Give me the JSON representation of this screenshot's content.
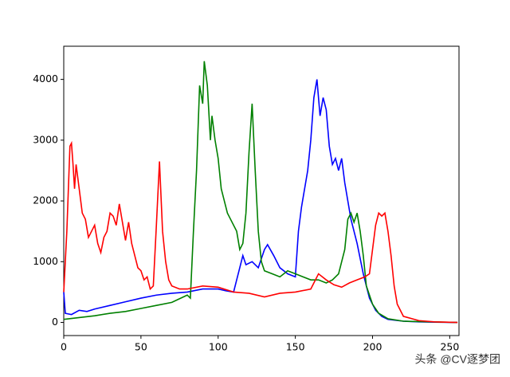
{
  "chart_data": {
    "type": "line",
    "xlim": [
      0,
      256
    ],
    "ylim": [
      -216,
      4546
    ],
    "xticks": [
      0,
      50,
      100,
      150,
      200,
      250
    ],
    "yticks": [
      0,
      1000,
      2000,
      3000,
      4000
    ],
    "series": [
      {
        "color": "#0000ff",
        "x": [
          0,
          1,
          5,
          10,
          15,
          20,
          30,
          40,
          50,
          60,
          70,
          80,
          90,
          100,
          105,
          110,
          112,
          116,
          118,
          122,
          126,
          130,
          132,
          136,
          140,
          145,
          150,
          152,
          154,
          158,
          160,
          162,
          164,
          166,
          168,
          170,
          172,
          174,
          176,
          178,
          180,
          182,
          184,
          186,
          190,
          194,
          198,
          202,
          206,
          210,
          220,
          230,
          240,
          255
        ],
        "values": [
          500,
          150,
          130,
          200,
          180,
          220,
          280,
          340,
          400,
          450,
          480,
          500,
          550,
          550,
          520,
          500,
          700,
          1100,
          950,
          1000,
          900,
          1200,
          1280,
          1100,
          900,
          800,
          750,
          1500,
          1900,
          2500,
          3000,
          3700,
          4000,
          3400,
          3700,
          3500,
          2900,
          2600,
          2700,
          2500,
          2700,
          2300,
          2000,
          1700,
          1300,
          800,
          400,
          200,
          100,
          50,
          20,
          10,
          5,
          0
        ]
      },
      {
        "color": "#008000",
        "x": [
          0,
          10,
          20,
          30,
          40,
          50,
          60,
          70,
          80,
          82,
          84,
          86,
          88,
          90,
          91,
          93,
          95,
          96,
          98,
          100,
          102,
          104,
          106,
          108,
          112,
          114,
          116,
          118,
          120,
          122,
          124,
          126,
          128,
          130,
          135,
          140,
          145,
          150,
          155,
          160,
          165,
          170,
          174,
          178,
          182,
          184,
          186,
          188,
          190,
          192,
          194,
          196,
          200,
          204,
          210,
          220,
          255
        ],
        "values": [
          50,
          80,
          110,
          150,
          180,
          230,
          280,
          330,
          450,
          400,
          1500,
          2500,
          3900,
          3600,
          4300,
          3900,
          3000,
          3400,
          3000,
          2700,
          2200,
          2000,
          1800,
          1700,
          1500,
          1200,
          1300,
          1800,
          2800,
          3600,
          2500,
          1500,
          1000,
          850,
          800,
          750,
          850,
          800,
          750,
          700,
          700,
          650,
          700,
          800,
          1200,
          1700,
          1800,
          1650,
          1800,
          1500,
          1100,
          600,
          300,
          150,
          60,
          20,
          0
        ]
      },
      {
        "color": "#ff0000",
        "x": [
          0,
          2,
          4,
          5,
          6,
          7,
          8,
          10,
          12,
          14,
          16,
          18,
          20,
          22,
          24,
          26,
          28,
          30,
          32,
          34,
          36,
          38,
          40,
          42,
          44,
          46,
          48,
          50,
          52,
          54,
          56,
          58,
          60,
          62,
          64,
          66,
          68,
          70,
          75,
          80,
          90,
          100,
          110,
          120,
          130,
          140,
          150,
          160,
          165,
          170,
          175,
          180,
          185,
          190,
          195,
          198,
          200,
          202,
          204,
          206,
          208,
          210,
          212,
          214,
          216,
          220,
          230,
          240,
          255
        ],
        "values": [
          500,
          1500,
          2900,
          2950,
          2600,
          2200,
          2600,
          2200,
          1800,
          1700,
          1400,
          1500,
          1600,
          1300,
          1150,
          1400,
          1500,
          1800,
          1750,
          1600,
          1950,
          1650,
          1350,
          1650,
          1300,
          1100,
          900,
          850,
          700,
          750,
          550,
          600,
          1600,
          2650,
          1500,
          1000,
          700,
          600,
          550,
          550,
          600,
          580,
          500,
          480,
          420,
          480,
          500,
          550,
          800,
          700,
          620,
          580,
          650,
          700,
          750,
          800,
          1200,
          1600,
          1800,
          1750,
          1800,
          1500,
          1100,
          600,
          300,
          100,
          30,
          10,
          0
        ]
      }
    ],
    "watermark": "头条 @CV逐梦团"
  }
}
